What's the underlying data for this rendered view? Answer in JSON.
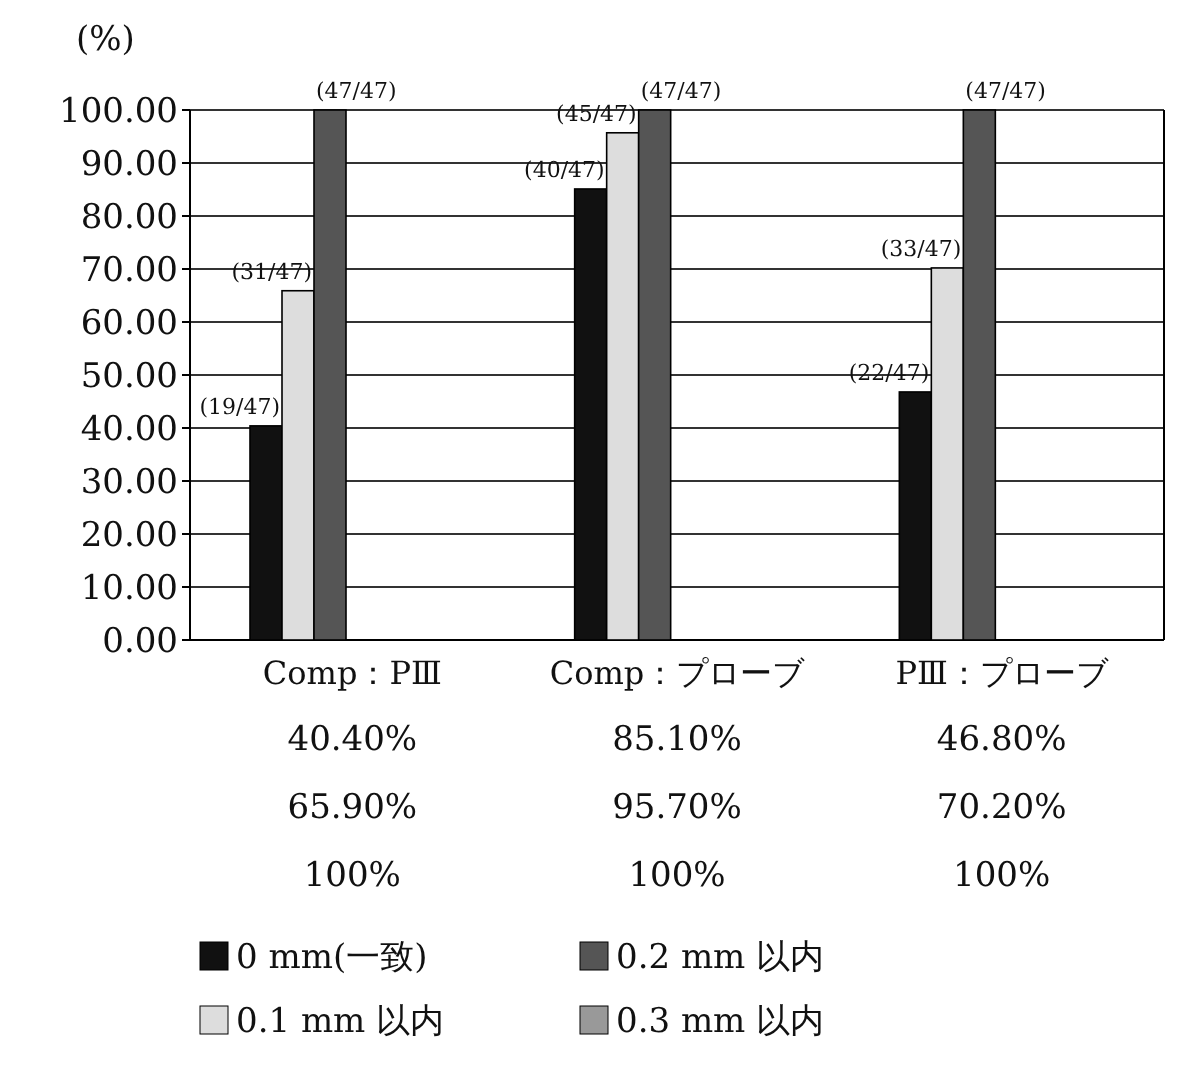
{
  "chart_data": {
    "type": "bar",
    "ylabel": "(%)",
    "categories": [
      "Comp：PⅢ",
      "Comp：プローブ",
      "PⅢ：プローブ"
    ],
    "series": [
      {
        "name": "0 mm(一致)",
        "color": "#111111",
        "values": [
          40.4,
          85.1,
          46.8
        ],
        "value_labels": [
          "(19/47)",
          "(40/47)",
          "(22/47)"
        ]
      },
      {
        "name": "0.1 mm 以内",
        "color": "#dddddd",
        "values": [
          65.9,
          95.7,
          70.2
        ],
        "value_labels": [
          "(31/47)",
          "(45/47)",
          "(33/47)"
        ]
      },
      {
        "name": "0.2 mm 以内",
        "color": "#555555",
        "values": [
          100,
          100,
          100
        ],
        "value_labels": [
          "(47/47)",
          "(47/47)",
          "(47/47)"
        ]
      },
      {
        "name": "0.3 mm 以内",
        "color": "#999999",
        "values": [
          null,
          null,
          null
        ]
      }
    ],
    "ylim": [
      0,
      100
    ],
    "yticks": [
      {
        "value": 0,
        "label": "0.00"
      },
      {
        "value": 10,
        "label": "10.00"
      },
      {
        "value": 20,
        "label": "20.00"
      },
      {
        "value": 30,
        "label": "30.00"
      },
      {
        "value": 40,
        "label": "40.00"
      },
      {
        "value": 50,
        "label": "50.00"
      },
      {
        "value": 60,
        "label": "60.00"
      },
      {
        "value": 70,
        "label": "70.00"
      },
      {
        "value": 80,
        "label": "80.00"
      },
      {
        "value": 90,
        "label": "90.00"
      },
      {
        "value": 100,
        "label": "100.00"
      }
    ],
    "grid": "y",
    "legend": "bottom",
    "annotations": [
      "40.40%",
      "85.10%",
      "46.80%",
      "65.90%",
      "95.70%",
      "70.20%",
      "100%",
      "100%",
      "100%"
    ]
  }
}
